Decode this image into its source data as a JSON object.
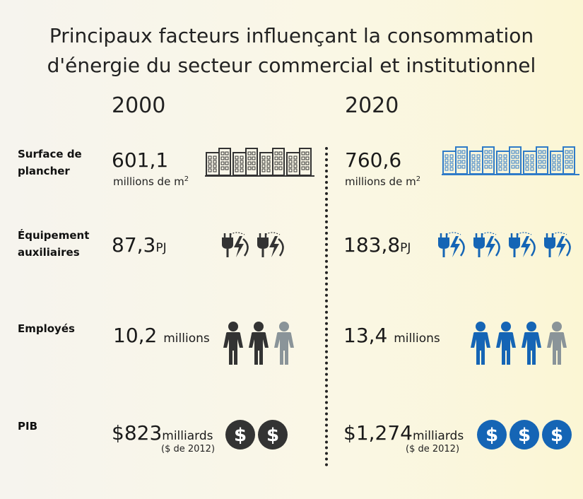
{
  "title_line1": "Principaux facteurs influençant la consommation",
  "title_line2": "d'énergie du secteur commercial et institutionnel",
  "years": {
    "left": "2000",
    "right": "2020"
  },
  "rows": {
    "surface": {
      "label_line1": "Surface de",
      "label_line2": "plancher",
      "left_value": "601,1",
      "right_value": "760,6",
      "unit": "millions de m",
      "unit_exp": "2"
    },
    "equipement": {
      "label_line1": "Équipement",
      "label_line2": "auxiliaires",
      "left_value": "87,3",
      "right_value": "183,8",
      "unit": "PJ"
    },
    "employes": {
      "label": "Employés",
      "left_value": "10,2",
      "right_value": "13,4",
      "unit": "millions"
    },
    "pib": {
      "label": "PIB",
      "left_value": "$823",
      "right_value": "$1,274",
      "unit": "milliards",
      "unit_note": "($ de 2012)"
    }
  },
  "icons": {
    "buildings": "building-icon",
    "plugs": "plug-energy-icon",
    "people": "person-icon",
    "coins": "dollar-coin-icon"
  },
  "colors": {
    "dark": "#333333",
    "blue": "#1565b5",
    "grey": "#8a9499",
    "lightblue": "#2f7bc8"
  }
}
